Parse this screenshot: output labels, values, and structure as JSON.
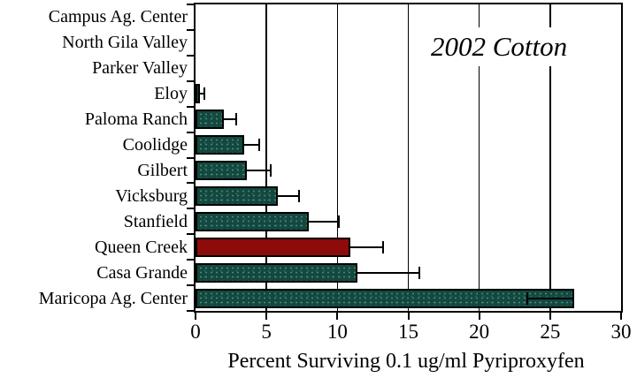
{
  "figure": {
    "title": "2002 Cotton",
    "x_axis_label": "Percent Surviving 0.1 ug/ml Pyriproxyfen"
  },
  "colors": {
    "bar_fill": "#14473F",
    "highlight_fill": "#8E0B0B",
    "axis": "#000000",
    "background": "#FFFFFF"
  },
  "chart_data": {
    "type": "bar",
    "orientation": "horizontal",
    "title": "2002 Cotton",
    "xlabel": "Percent Surviving 0.1 ug/ml Pyriproxyfen",
    "ylabel": "",
    "xlim": [
      0,
      30
    ],
    "x_ticks": [
      0,
      5,
      10,
      15,
      20,
      25,
      30
    ],
    "gridlines_at": [
      5,
      10,
      15,
      20,
      25
    ],
    "grid": true,
    "legend": false,
    "categories": [
      "Campus Ag. Center",
      "North Gila Valley",
      "Parker Valley",
      "Eloy",
      "Paloma Ranch",
      "Coolidge",
      "Gilbert",
      "Vicksburg",
      "Stanfield",
      "Queen Creek",
      "Casa Grande",
      "Maricopa Ag. Center"
    ],
    "values": [
      0,
      0,
      0,
      0.3,
      2.0,
      3.4,
      3.6,
      5.8,
      8.0,
      10.9,
      11.4,
      26.7
    ],
    "err_plus": [
      0,
      0,
      0,
      0.35,
      0.9,
      1.1,
      1.7,
      1.5,
      2.1,
      2.3,
      4.4,
      0
    ],
    "err_minus": [
      0,
      0,
      0,
      0,
      0,
      0,
      0,
      0,
      0,
      0,
      0,
      3.4
    ],
    "highlight_index": 9
  }
}
